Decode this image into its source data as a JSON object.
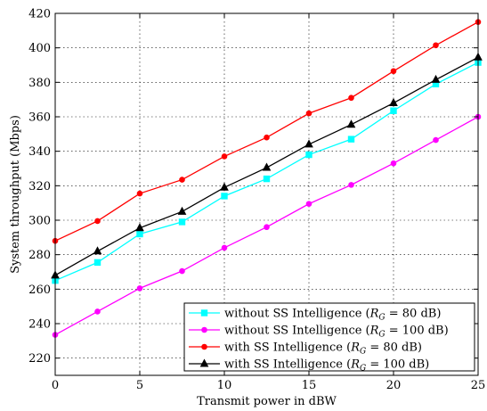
{
  "chart_data": {
    "type": "line",
    "title": "",
    "xlabel": "Transmit power in dBW",
    "ylabel": "System throughput (Mbps)",
    "xlim": [
      0,
      25
    ],
    "ylim": [
      210,
      420
    ],
    "xticks": [
      0,
      5,
      10,
      15,
      20,
      25
    ],
    "yticks": [
      220,
      240,
      260,
      280,
      300,
      320,
      340,
      360,
      380,
      400,
      420
    ],
    "grid": true,
    "legend_position": "bottom-right",
    "x": [
      0,
      2.5,
      5,
      7.5,
      10,
      12.5,
      15,
      17.5,
      20,
      22.5,
      25
    ],
    "series": [
      {
        "name": "without SS Intelligence (R_G = 80 dB)",
        "legend_text": "without SS Intelligence (",
        "legend_eq": " = 80 dB)",
        "color": "#00ffff",
        "marker": "square",
        "values": [
          265,
          275.5,
          292,
          299,
          314,
          324,
          338,
          347,
          363.5,
          379,
          391.5
        ]
      },
      {
        "name": "without SS Intelligence (R_G = 100 dB)",
        "legend_text": "without SS Intelligence (",
        "legend_eq": " = 100 dB)",
        "color": "#ff00ff",
        "marker": "dot",
        "values": [
          233.5,
          247,
          260.5,
          270.5,
          284,
          296,
          309.5,
          320.5,
          333,
          346.5,
          360
        ]
      },
      {
        "name": "with SS Intelligence (R_G = 80 dB)",
        "legend_text": "with SS Intelligence (",
        "legend_eq": " = 80 dB)",
        "color": "#ff0000",
        "marker": "dot",
        "values": [
          288,
          299.5,
          315.5,
          323.5,
          337,
          348,
          362,
          371,
          386.5,
          401.5,
          415
        ]
      },
      {
        "name": "with SS Intelligence (R_G = 100 dB)",
        "legend_text": "with SS Intelligence (",
        "legend_eq": " = 100 dB)",
        "color": "#000000",
        "marker": "triangle",
        "values": [
          268,
          282,
          295.5,
          305,
          319,
          330.5,
          344,
          355.5,
          368,
          381.5,
          394.5
        ]
      }
    ]
  }
}
